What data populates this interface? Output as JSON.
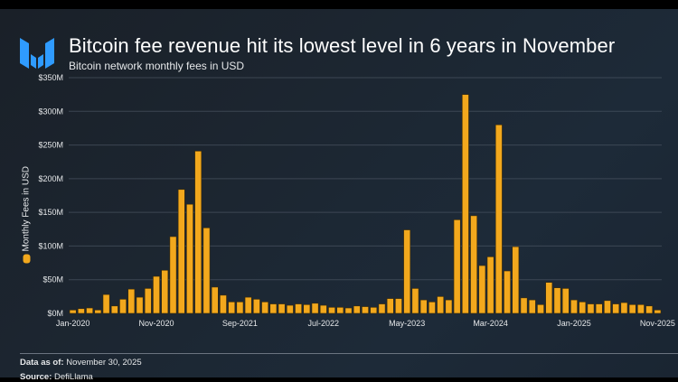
{
  "header": {
    "title": "Bitcoin fee revenue hit its lowest level in 6 years in November",
    "subtitle": "Bitcoin network monthly fees in USD",
    "logo_icon": "brand-m-logo-icon"
  },
  "colors": {
    "bar": "#f2a81d",
    "bar_outline": "#3a2a08",
    "logo": "#2f9bff",
    "gridline": "#4a5562",
    "text": "#e6e8ea"
  },
  "footer": {
    "data_as_of_label": "Data as of:",
    "data_as_of_value": "November 30, 2025",
    "source_label": "Source:",
    "source_value": "DefiLlama"
  },
  "chart_data": {
    "type": "bar",
    "title": "Bitcoin fee revenue hit its lowest level in 6 years in November",
    "subtitle": "Bitcoin network monthly fees in USD",
    "xlabel": "",
    "ylabel": "Monthly Fees in USD",
    "legend": {
      "entries": [
        "Monthly Fees in USD"
      ],
      "placement": "left"
    },
    "ylim": [
      0,
      350
    ],
    "yticks": [
      0,
      50,
      100,
      150,
      200,
      250,
      300,
      350
    ],
    "ytick_labels": [
      "$0M",
      "$50M",
      "$100M",
      "$150M",
      "$200M",
      "$250M",
      "$300M",
      "$350M"
    ],
    "grid": true,
    "xtick_labels": [
      {
        "index": 0,
        "label": "Jan-2020"
      },
      {
        "index": 10,
        "label": "Nov-2020"
      },
      {
        "index": 20,
        "label": "Sep-2021"
      },
      {
        "index": 30,
        "label": "Jul-2022"
      },
      {
        "index": 40,
        "label": "May-2023"
      },
      {
        "index": 50,
        "label": "Mar-2024"
      },
      {
        "index": 60,
        "label": "Jan-2025"
      },
      {
        "index": 70,
        "label": "Nov-2025"
      }
    ],
    "categories": [
      "Jan-2020",
      "Feb-2020",
      "Mar-2020",
      "Apr-2020",
      "May-2020",
      "Jun-2020",
      "Jul-2020",
      "Aug-2020",
      "Sep-2020",
      "Oct-2020",
      "Nov-2020",
      "Dec-2020",
      "Jan-2021",
      "Feb-2021",
      "Mar-2021",
      "Apr-2021",
      "May-2021",
      "Jun-2021",
      "Jul-2021",
      "Aug-2021",
      "Sep-2021",
      "Oct-2021",
      "Nov-2021",
      "Dec-2021",
      "Jan-2022",
      "Feb-2022",
      "Mar-2022",
      "Apr-2022",
      "May-2022",
      "Jun-2022",
      "Jul-2022",
      "Aug-2022",
      "Sep-2022",
      "Oct-2022",
      "Nov-2022",
      "Dec-2022",
      "Jan-2023",
      "Feb-2023",
      "Mar-2023",
      "Apr-2023",
      "May-2023",
      "Jun-2023",
      "Jul-2023",
      "Aug-2023",
      "Sep-2023",
      "Oct-2023",
      "Nov-2023",
      "Dec-2023",
      "Jan-2024",
      "Feb-2024",
      "Mar-2024",
      "Apr-2024",
      "May-2024",
      "Jun-2024",
      "Jul-2024",
      "Aug-2024",
      "Sep-2024",
      "Oct-2024",
      "Nov-2024",
      "Dec-2024",
      "Jan-2025",
      "Feb-2025",
      "Mar-2025",
      "Apr-2025",
      "May-2025",
      "Jun-2025",
      "Jul-2025",
      "Aug-2025",
      "Sep-2025",
      "Oct-2025",
      "Nov-2025"
    ],
    "series": [
      {
        "name": "Monthly Fees in USD",
        "unit": "USD millions",
        "values": [
          5,
          7,
          8,
          5,
          28,
          11,
          21,
          36,
          24,
          37,
          55,
          64,
          114,
          184,
          162,
          241,
          127,
          39,
          27,
          17,
          17,
          24,
          21,
          17,
          14,
          14,
          12,
          14,
          13,
          15,
          12,
          9,
          9,
          8,
          11,
          10,
          9,
          14,
          22,
          22,
          124,
          37,
          20,
          17,
          25,
          20,
          139,
          325,
          145,
          71,
          84,
          280,
          63,
          99,
          23,
          20,
          13,
          46,
          38,
          37,
          20,
          17,
          14,
          14,
          19,
          14,
          16,
          13,
          13,
          11,
          5
        ]
      }
    ]
  }
}
